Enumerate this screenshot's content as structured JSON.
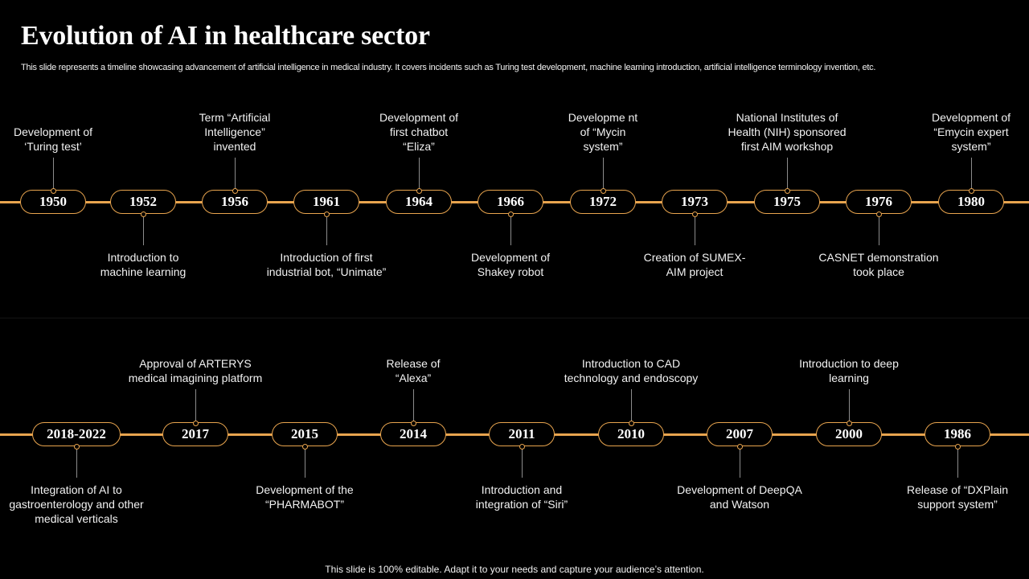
{
  "slide": {
    "title": "Evolution of AI in healthcare sector",
    "subtitle": "This slide represents a timeline showcasing advancement of artificial intelligence in medical industry. It covers incidents such as Turing test development, machine learning introduction, artificial intelligence terminology invention, etc.",
    "footer": "This slide is 100% editable. Adapt it to your needs and capture your audience’s attention."
  },
  "colors": {
    "background": "#000000",
    "accent": "#e8a44e",
    "connector": "#8c8c8c",
    "text": "#ffffff"
  },
  "timeline": {
    "row1": [
      {
        "year": "1950",
        "label": "Development of ‘Turing test’",
        "position": "top"
      },
      {
        "year": "1952",
        "label": "Introduction to machine learning",
        "position": "bottom"
      },
      {
        "year": "1956",
        "label": "Term “Artificial Intelligence” invented",
        "position": "top"
      },
      {
        "year": "1961",
        "label": "Introduction of first industrial bot, “Unimate”",
        "position": "bottom"
      },
      {
        "year": "1964",
        "label": "Development of first chatbot “Eliza”",
        "position": "top"
      },
      {
        "year": "1966",
        "label": "Development of Shakey robot",
        "position": "bottom"
      },
      {
        "year": "1972",
        "label": "Developme nt of “Mycin system”",
        "position": "top"
      },
      {
        "year": "1973",
        "label": "Creation of SUMEX-AIM project",
        "position": "bottom"
      },
      {
        "year": "1975",
        "label": "National Institutes of Health (NIH) sponsored first AIM workshop",
        "position": "top"
      },
      {
        "year": "1976",
        "label": "CASNET demonstration took place",
        "position": "bottom"
      },
      {
        "year": "1980",
        "label": "Development of “Emycin expert system”",
        "position": "top"
      }
    ],
    "row2": [
      {
        "year": "2018-2022",
        "label": "Integration of AI to gastroenterology and other medical verticals",
        "position": "bottom"
      },
      {
        "year": "2017",
        "label": "Approval of ARTERYS medical imagining platform",
        "position": "top"
      },
      {
        "year": "2015",
        "label": "Development of the “PHARMABOT”",
        "position": "bottom"
      },
      {
        "year": "2014",
        "label": "Release of “Alexa”",
        "position": "top"
      },
      {
        "year": "2011",
        "label": "Introduction and integration of “Siri”",
        "position": "bottom"
      },
      {
        "year": "2010",
        "label": "Introduction to CAD technology and endoscopy",
        "position": "top"
      },
      {
        "year": "2007",
        "label": "Development of DeepQA and Watson",
        "position": "bottom"
      },
      {
        "year": "2000",
        "label": "Introduction to deep learning",
        "position": "top"
      },
      {
        "year": "1986",
        "label": "Release of “DXPlain support system”",
        "position": "bottom"
      }
    ]
  }
}
